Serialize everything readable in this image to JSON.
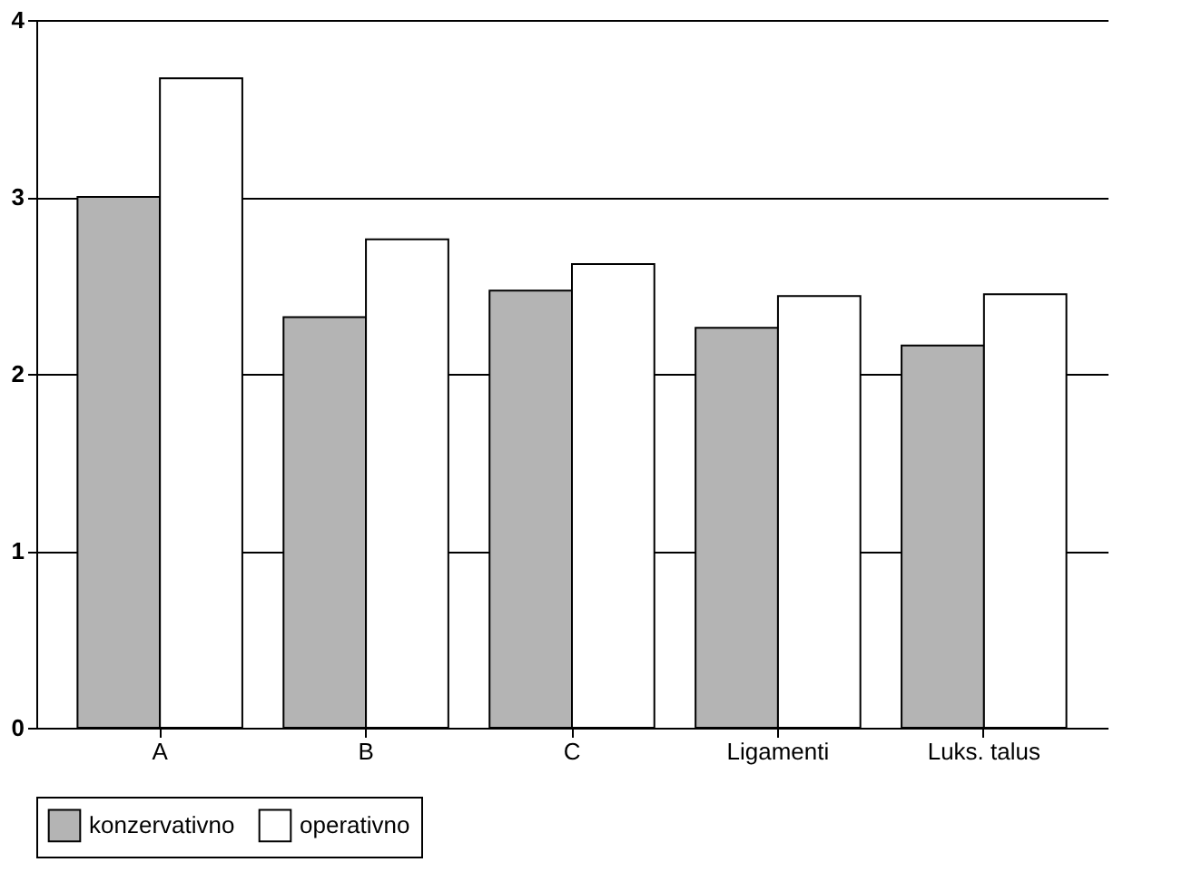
{
  "chart_data": {
    "type": "bar",
    "categories": [
      "A",
      "B",
      "C",
      "Ligamenti",
      "Luks. talus"
    ],
    "series": [
      {
        "name": "konzervativno",
        "color": "#b4b4b4",
        "values": [
          3.0,
          2.32,
          2.47,
          2.26,
          2.16
        ]
      },
      {
        "name": "operativno",
        "color": "#ffffff",
        "values": [
          3.67,
          2.76,
          2.62,
          2.44,
          2.45
        ]
      }
    ],
    "ylim": [
      0,
      4
    ],
    "yticks": [
      0,
      1,
      2,
      3,
      4
    ],
    "grid": "y",
    "legend": "bottom"
  }
}
